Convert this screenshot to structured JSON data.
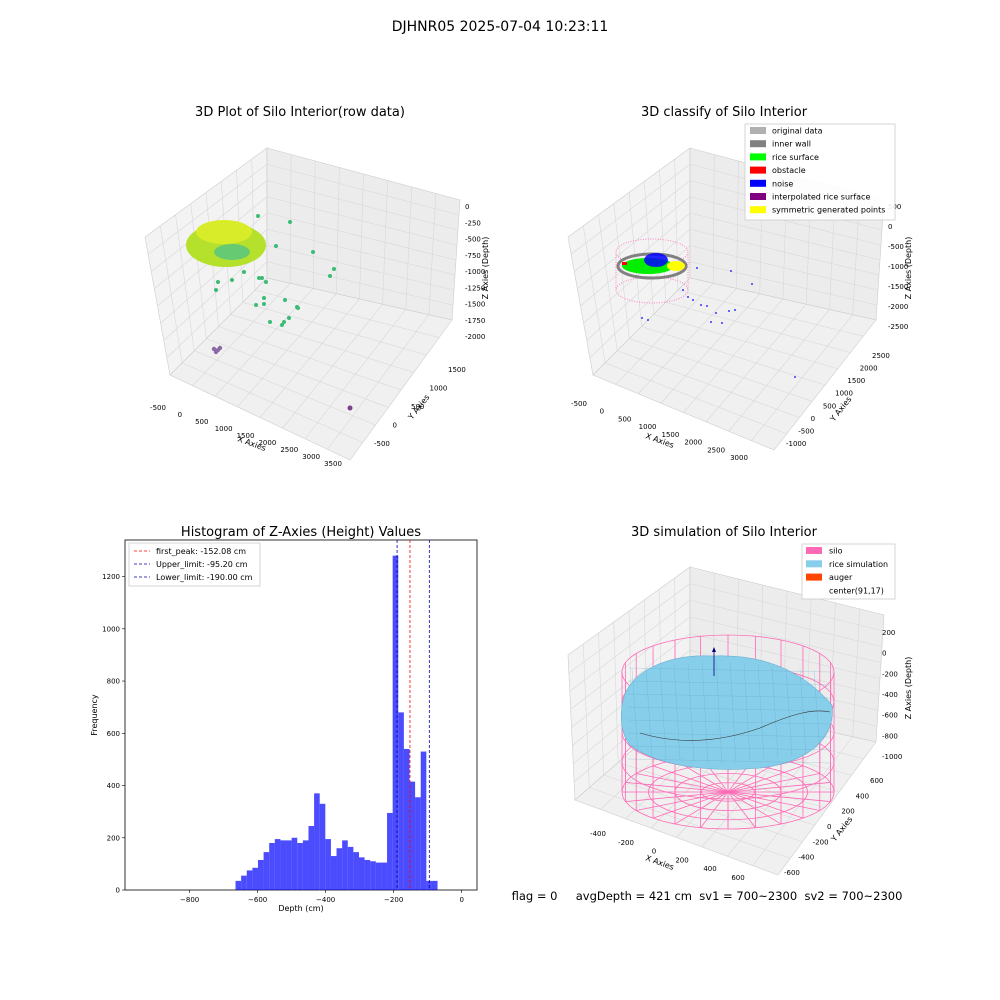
{
  "figure": {
    "suptitle": "DJHNR05 2025-07-04 10:23:11",
    "footer": "flag = 0     avgDepth = 421 cm  sv1 = 700~2300  sv2 = 700~2300"
  },
  "chart_data": [
    {
      "type": "scatter",
      "title": "3D Plot of Silo Interior(row data)",
      "xlabel": "X Axies",
      "ylabel": "Y Axies",
      "zlabel": "Z Axies (Depth)",
      "xticks": [
        "-500",
        "0",
        "500",
        "1000",
        "1500",
        "2000",
        "2500",
        "3000",
        "3500"
      ],
      "yticks": [
        "-500",
        "0",
        "500",
        "1000",
        "1500"
      ],
      "zticks": [
        "0",
        "-250",
        "-500",
        "-750",
        "-1000",
        "-1250",
        "-1500",
        "-1750",
        "-2000"
      ],
      "colors": {
        "surface": "#b5e02c",
        "mid": "#3cbb75",
        "deep": "#7a3f8f",
        "grid": "#dddddd"
      }
    },
    {
      "type": "scatter",
      "title": "3D classify of Silo Interior",
      "xlabel": "X Axies",
      "ylabel": "Y Axies",
      "zlabel": "Z Axies (Depth)",
      "xticks": [
        "-500",
        "0",
        "500",
        "1000",
        "1500",
        "2000",
        "2500",
        "3000"
      ],
      "yticks": [
        "-1000",
        "-500",
        "0",
        "500",
        "1000",
        "1500",
        "2000",
        "2500"
      ],
      "zticks": [
        "500",
        "0",
        "-500",
        "-1000",
        "-1500",
        "-2000",
        "-2500"
      ],
      "legend_position": "top-right",
      "legend": [
        {
          "name": "original data",
          "color": "#b0b0b0"
        },
        {
          "name": "inner wall",
          "color": "#808080"
        },
        {
          "name": "rice surface",
          "color": "#00ff00"
        },
        {
          "name": "obstacle",
          "color": "#ff0000"
        },
        {
          "name": "noise",
          "color": "#0000ff"
        },
        {
          "name": "interpolated rice surface",
          "color": "#800080"
        },
        {
          "name": "symmetric generated points",
          "color": "#ffff00"
        }
      ]
    },
    {
      "type": "bar",
      "title": "Histogram of Z-Axies (Height) Values",
      "xlabel": "Depth (cm)",
      "ylabel": "Frequency",
      "xlim": [
        -990,
        45
      ],
      "ylim": [
        0,
        1340
      ],
      "xticks": [
        -800,
        -600,
        -400,
        -200,
        0
      ],
      "yticks": [
        0,
        200,
        400,
        600,
        800,
        1000,
        1200
      ],
      "bin_width": 16.5,
      "bin_starts": [
        -665,
        -648.5,
        -632,
        -615.5,
        -599,
        -582.5,
        -566,
        -549.5,
        -533,
        -516.5,
        -500,
        -483.5,
        -467,
        -450.5,
        -434,
        -417.5,
        -401,
        -384.5,
        -368,
        -351.5,
        -335,
        -318.5,
        -302,
        -285.5,
        -269,
        -252.5,
        -236,
        -219.5,
        -203,
        -186.5,
        -170,
        -153.5,
        -137,
        -120.5,
        -104,
        -87.5,
        -71,
        -54.5,
        -38,
        -21.5
      ],
      "values": [
        35,
        55,
        75,
        85,
        115,
        145,
        180,
        195,
        190,
        190,
        200,
        180,
        190,
        245,
        370,
        330,
        195,
        130,
        160,
        190,
        165,
        145,
        125,
        115,
        110,
        105,
        105,
        295,
        1280,
        680,
        540,
        415,
        355,
        530,
        35,
        35,
        0,
        0,
        0,
        0
      ],
      "bar_color": "#0000ff",
      "reference_lines": [
        {
          "name": "first_peak: -152.08 cm",
          "value": -152.08,
          "color": "#ff0000"
        },
        {
          "name": "Upper_limit: -95.20 cm",
          "value": -95.2,
          "color": "#0000aa"
        },
        {
          "name": "Lower_limit: -190.00 cm",
          "value": -190.0,
          "color": "#0000aa"
        }
      ],
      "legend_position": "top-left"
    },
    {
      "type": "surface",
      "title": "3D simulation of Silo Interior",
      "xlabel": "X Axies",
      "ylabel": "Y Axies",
      "zlabel": "Z Axies (Depth)",
      "xticks": [
        "-400",
        "-200",
        "0",
        "200",
        "400",
        "600"
      ],
      "yticks": [
        "-600",
        "-400",
        "-200",
        "0",
        "200",
        "400",
        "600"
      ],
      "zticks": [
        "200",
        "0",
        "-200",
        "-400",
        "-600",
        "-800",
        "-1000"
      ],
      "legend_position": "top-right",
      "legend": [
        {
          "name": "silo",
          "color": "#ff69b4"
        },
        {
          "name": "rice simulation",
          "color": "#87ceeb"
        },
        {
          "name": "auger",
          "color": "#ff4500"
        },
        {
          "name": "center(91,17)",
          "color": "#ffffff"
        }
      ]
    }
  ]
}
